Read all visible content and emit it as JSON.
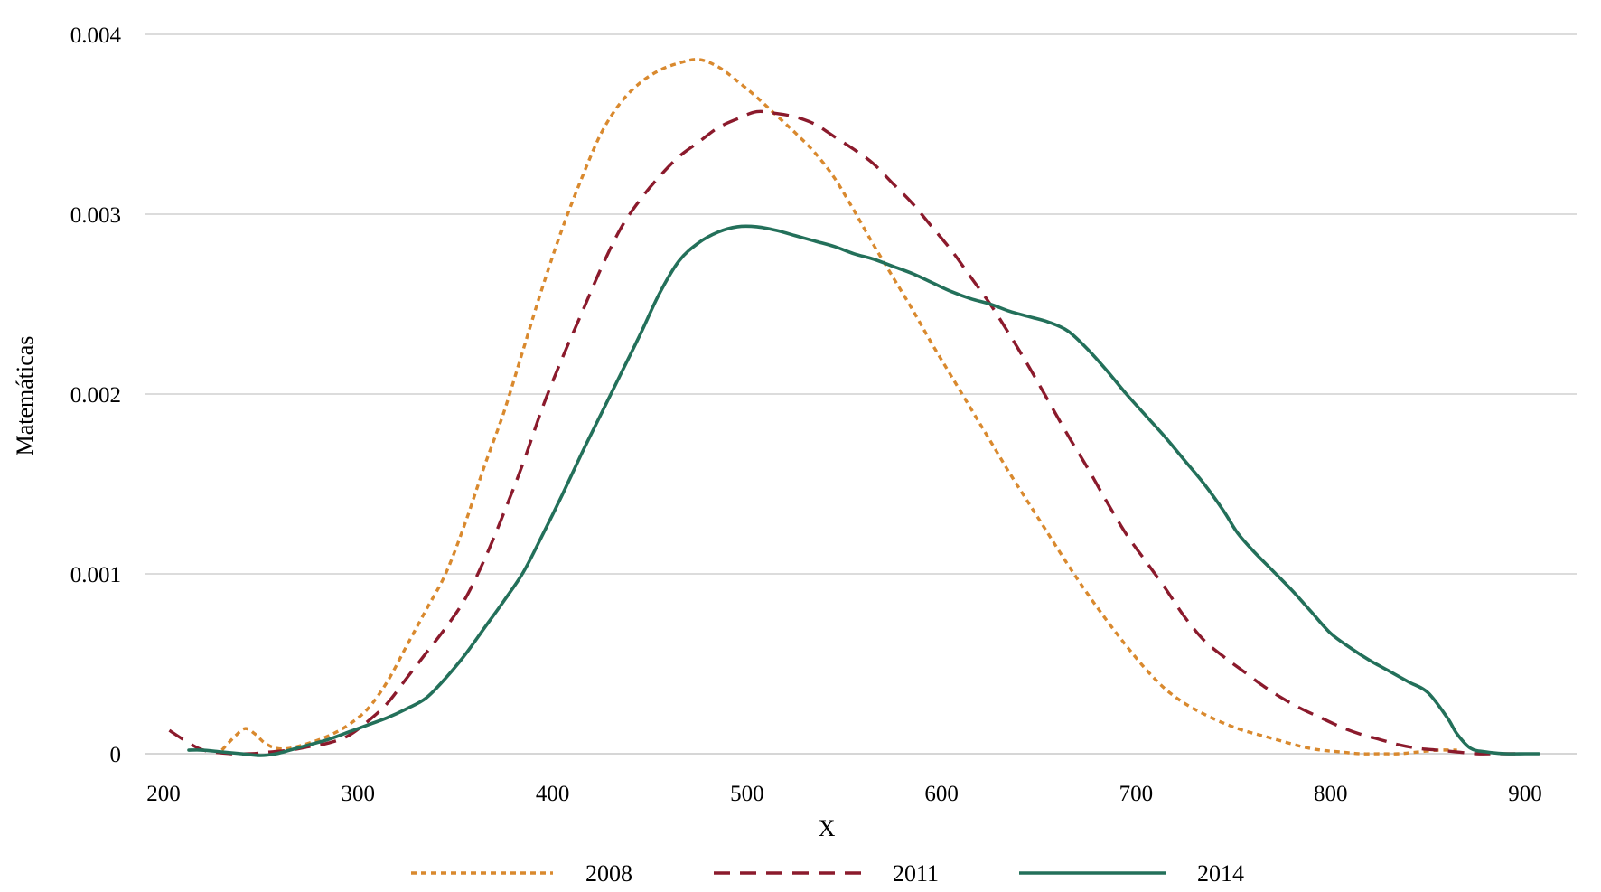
{
  "chart_data": {
    "type": "line",
    "title": "",
    "xlabel": "X",
    "ylabel": "Matemáticas",
    "xlim": [
      195,
      910
    ],
    "ylim": [
      0,
      0.004
    ],
    "x_ticks": [
      200,
      300,
      400,
      500,
      600,
      700,
      800,
      900
    ],
    "x_tick_labels": [
      "200",
      "300",
      "400",
      "500",
      "600",
      "700",
      "800",
      "900"
    ],
    "y_ticks": [
      0,
      0.001,
      0.002,
      0.003,
      0.004
    ],
    "y_tick_labels": [
      "0",
      "0.001",
      "0.002",
      "0.003",
      "0.004"
    ],
    "grid": "horizontal",
    "legend_position": "bottom-center",
    "series": [
      {
        "name": "2008",
        "color": "#D9892E",
        "style": "dotted",
        "x": [
          230,
          237,
          242,
          247,
          252,
          258,
          265,
          275,
          285,
          295,
          305,
          315,
          325,
          335,
          345,
          355,
          365,
          375,
          385,
          395,
          405,
          415,
          425,
          435,
          445,
          455,
          465,
          475,
          485,
          495,
          505,
          515,
          525,
          535,
          545,
          555,
          565,
          575,
          585,
          595,
          605,
          615,
          625,
          635,
          645,
          655,
          665,
          675,
          685,
          695,
          705,
          715,
          725,
          735,
          745,
          755,
          765,
          775,
          785,
          795,
          805,
          815,
          825,
          835,
          845,
          855,
          865
        ],
        "y": [
          2e-05,
          0.0001,
          0.00014,
          0.00011,
          6e-05,
          3e-05,
          3e-05,
          6e-05,
          0.0001,
          0.00016,
          0.00025,
          0.0004,
          0.0006,
          0.0008,
          0.001,
          0.00128,
          0.0016,
          0.0019,
          0.00225,
          0.0026,
          0.00292,
          0.0032,
          0.00345,
          0.00362,
          0.00373,
          0.0038,
          0.00384,
          0.00386,
          0.00382,
          0.00374,
          0.00365,
          0.00355,
          0.00345,
          0.00334,
          0.0032,
          0.00302,
          0.00283,
          0.00265,
          0.00247,
          0.00228,
          0.0021,
          0.00192,
          0.00174,
          0.00156,
          0.00139,
          0.00122,
          0.00105,
          0.00089,
          0.00074,
          0.0006,
          0.00047,
          0.00036,
          0.00028,
          0.00022,
          0.00017,
          0.00013,
          0.0001,
          7e-05,
          4e-05,
          2e-05,
          1e-05,
          0.0,
          0.0,
          0.0,
          1e-05,
          2e-05,
          2e-05
        ]
      },
      {
        "name": "2011",
        "color": "#8B1A2C",
        "style": "dashed",
        "x": [
          203,
          210,
          218,
          225,
          235,
          245,
          255,
          265,
          275,
          285,
          295,
          305,
          315,
          325,
          335,
          345,
          355,
          365,
          375,
          385,
          395,
          405,
          415,
          425,
          435,
          445,
          455,
          465,
          475,
          485,
          495,
          505,
          515,
          525,
          535,
          545,
          555,
          565,
          575,
          585,
          595,
          605,
          615,
          625,
          635,
          645,
          655,
          665,
          675,
          685,
          695,
          705,
          715,
          725,
          735,
          745,
          755,
          765,
          775,
          785,
          795,
          805,
          815,
          825,
          835,
          845,
          855,
          865,
          875,
          885,
          895
        ],
        "y": [
          0.00013,
          8e-05,
          3e-05,
          1e-05,
          0.0,
          0.0,
          1e-05,
          2e-05,
          4e-05,
          6e-05,
          0.0001,
          0.00018,
          0.00028,
          0.00042,
          0.00056,
          0.0007,
          0.00086,
          0.00108,
          0.00134,
          0.00162,
          0.00193,
          0.0022,
          0.00245,
          0.0027,
          0.00292,
          0.00308,
          0.00321,
          0.00332,
          0.0034,
          0.00348,
          0.00353,
          0.00357,
          0.00356,
          0.00354,
          0.0035,
          0.00343,
          0.00336,
          0.00328,
          0.00317,
          0.00306,
          0.00293,
          0.0028,
          0.00265,
          0.0025,
          0.00233,
          0.00215,
          0.00196,
          0.00177,
          0.00159,
          0.0014,
          0.00122,
          0.00107,
          0.00092,
          0.00076,
          0.00063,
          0.00054,
          0.00046,
          0.00038,
          0.00031,
          0.00025,
          0.0002,
          0.00015,
          0.00011,
          8e-05,
          5e-05,
          3e-05,
          2e-05,
          1e-05,
          0.0,
          0.0,
          0.0
        ]
      },
      {
        "name": "2014",
        "color": "#23705A",
        "style": "solid",
        "x": [
          213,
          220,
          230,
          240,
          250,
          258,
          265,
          275,
          285,
          295,
          305,
          315,
          325,
          335,
          345,
          355,
          365,
          375,
          385,
          395,
          405,
          415,
          425,
          435,
          445,
          455,
          465,
          475,
          485,
          495,
          505,
          515,
          525,
          535,
          545,
          555,
          565,
          575,
          585,
          595,
          605,
          615,
          625,
          635,
          645,
          655,
          665,
          675,
          685,
          695,
          705,
          715,
          725,
          735,
          745,
          752,
          760,
          770,
          780,
          790,
          800,
          810,
          820,
          830,
          840,
          850,
          860,
          865,
          872,
          880,
          890,
          900,
          907
        ],
        "y": [
          2e-05,
          2e-05,
          1e-05,
          0.0,
          -1e-05,
          0.0,
          2e-05,
          5e-05,
          8e-05,
          0.00012,
          0.00016,
          0.0002,
          0.00025,
          0.00031,
          0.00042,
          0.00055,
          0.0007,
          0.00085,
          0.00101,
          0.00122,
          0.00144,
          0.00167,
          0.00189,
          0.00211,
          0.00233,
          0.00256,
          0.00274,
          0.00284,
          0.0029,
          0.00293,
          0.00293,
          0.00291,
          0.00288,
          0.00285,
          0.00282,
          0.00278,
          0.00275,
          0.00271,
          0.00267,
          0.00262,
          0.00257,
          0.00253,
          0.0025,
          0.00246,
          0.00243,
          0.0024,
          0.00235,
          0.00225,
          0.00213,
          0.002,
          0.00188,
          0.00176,
          0.00163,
          0.0015,
          0.00135,
          0.00123,
          0.00113,
          0.00102,
          0.00091,
          0.00079,
          0.00067,
          0.00059,
          0.00052,
          0.00046,
          0.0004,
          0.00034,
          0.0002,
          0.00011,
          3e-05,
          1e-05,
          0.0,
          0.0,
          0.0
        ]
      }
    ]
  }
}
